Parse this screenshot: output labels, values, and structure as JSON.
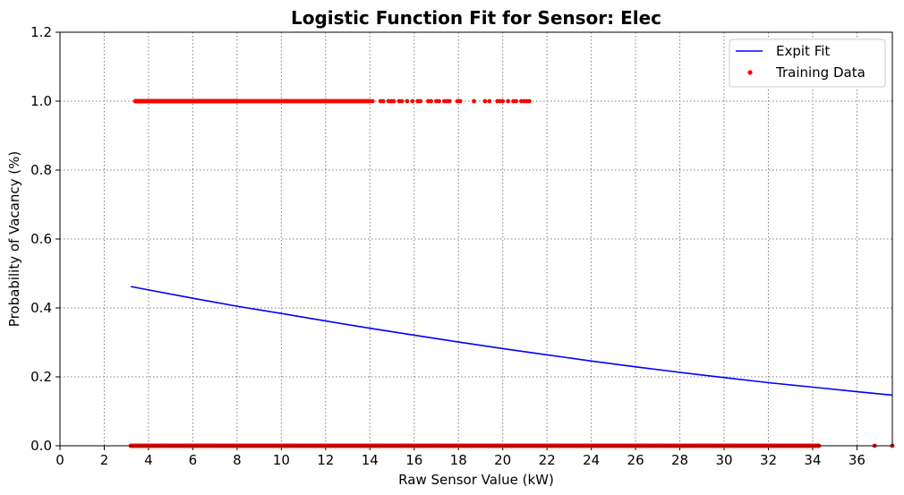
{
  "chart_data": {
    "type": "scatter",
    "title": "Logistic Function Fit for Sensor: Elec",
    "xlabel": "Raw Sensor Value (kW)",
    "ylabel": "Probability of Vacancy (%)",
    "xlim": [
      0,
      37.6
    ],
    "ylim": [
      0,
      1.2
    ],
    "xticks": [
      0,
      2,
      4,
      6,
      8,
      10,
      12,
      14,
      16,
      18,
      20,
      22,
      24,
      26,
      28,
      30,
      32,
      34,
      36
    ],
    "yticks": [
      0.0,
      0.2,
      0.4,
      0.6,
      0.8,
      1.0,
      1.2
    ],
    "xtick_labels": [
      "0",
      "2",
      "4",
      "6",
      "8",
      "10",
      "12",
      "14",
      "16",
      "18",
      "20",
      "22",
      "24",
      "26",
      "28",
      "30",
      "32",
      "34",
      "36"
    ],
    "ytick_labels": [
      "0.0",
      "0.2",
      "0.4",
      "0.6",
      "0.8",
      "1.0",
      "1.2"
    ],
    "grid": true,
    "legend_position": "top-right",
    "series": [
      {
        "name": "Expit Fit",
        "kind": "line",
        "color": "#0000ff",
        "x": [
          3.2,
          6,
          8,
          10,
          12,
          14,
          16,
          18,
          20,
          22,
          24,
          26,
          28,
          30,
          32,
          34,
          36,
          37.6
        ],
        "y": [
          0.462,
          0.428,
          0.405,
          0.384,
          0.362,
          0.341,
          0.321,
          0.301,
          0.282,
          0.264,
          0.246,
          0.229,
          0.213,
          0.198,
          0.183,
          0.17,
          0.157,
          0.147
        ]
      },
      {
        "name": "Training Data",
        "kind": "scatter",
        "color": "#ff0000",
        "points": [
          {
            "x_range": [
              3.4,
              8.0
            ],
            "y": 1.0,
            "density": "dense"
          },
          {
            "x_range": [
              8.0,
              14.0
            ],
            "y": 1.0,
            "density": "medium"
          },
          {
            "x_range": [
              14.0,
              18.3
            ],
            "y": 1.0,
            "density": "sparse"
          },
          {
            "x": 18.7,
            "y": 1.0
          },
          {
            "x": 19.2,
            "y": 1.0
          },
          {
            "x_range": [
              19.4,
              21.3
            ],
            "y": 1.0,
            "density": "sparse"
          },
          {
            "x_range": [
              3.2,
              34.3
            ],
            "y": 0.0,
            "density": "dense"
          },
          {
            "x": 36.8,
            "y": 0.0
          },
          {
            "x": 37.6,
            "y": 0.0
          }
        ]
      }
    ]
  }
}
